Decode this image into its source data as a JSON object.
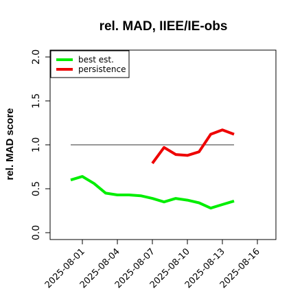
{
  "chart_data": {
    "type": "line",
    "title": "rel. MAD, IIEE/IE-obs",
    "xlabel": "",
    "ylabel": "rel. MAD score",
    "ylim": [
      0,
      2
    ],
    "yticks": [
      "0.0",
      "0.5",
      "1.0",
      "1.5",
      "2.0"
    ],
    "xticks": [
      "2025-08-01",
      "2025-08-04",
      "2025-08-07",
      "2025-08-10",
      "2025-08-13",
      "2025-08-16"
    ],
    "x": [
      "2025-07-31",
      "2025-08-01",
      "2025-08-02",
      "2025-08-03",
      "2025-08-04",
      "2025-08-05",
      "2025-08-06",
      "2025-08-07",
      "2025-08-08",
      "2025-08-09",
      "2025-08-10",
      "2025-08-11",
      "2025-08-12",
      "2025-08-13",
      "2025-08-14"
    ],
    "series": [
      {
        "name": "best est.",
        "color": "#00ee00",
        "values": [
          0.6,
          0.64,
          0.56,
          0.45,
          0.43,
          0.43,
          0.42,
          0.39,
          0.35,
          0.39,
          0.37,
          0.34,
          0.28,
          0.32,
          0.36
        ]
      },
      {
        "name": "persistence",
        "color": "#ee0000",
        "values": [
          null,
          null,
          null,
          null,
          null,
          null,
          null,
          0.79,
          0.97,
          0.89,
          0.88,
          0.92,
          1.12,
          1.17,
          1.12
        ]
      }
    ],
    "reference_line": {
      "value": 1.0,
      "x_from": "2025-07-31",
      "x_to": "2025-08-14",
      "color": "#777777"
    },
    "legend": "top-left",
    "grid": false
  }
}
